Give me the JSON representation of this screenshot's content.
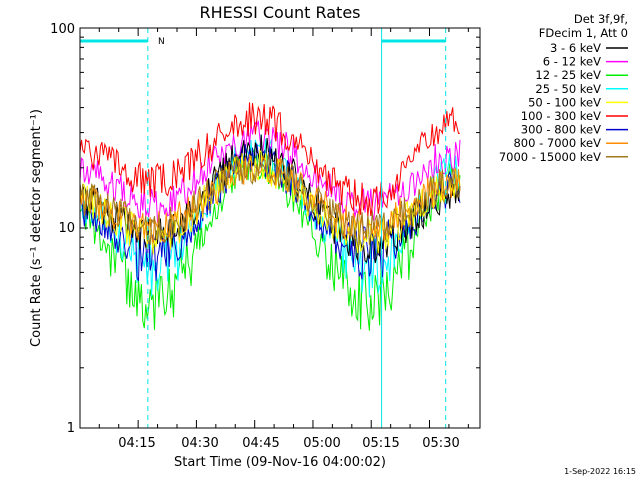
{
  "chart_data": {
    "type": "line",
    "title": "RHESSI Count Rates",
    "xlabel": "Start Time (09-Nov-16 04:00:02)",
    "ylabel": "Count Rate (s⁻¹ detector segment⁻¹)",
    "yscale": "log",
    "ylim": [
      1,
      100
    ],
    "xlim": [
      "04:00:02",
      "05:43:00"
    ],
    "x_tick_labels": [
      "04:15",
      "04:30",
      "04:45",
      "05:00",
      "05:15",
      "05:30"
    ],
    "y_tick_labels": [
      "1",
      "10",
      "100"
    ],
    "legend_header": [
      "Det 3f,9f,",
      "FDecim 1, Att 0"
    ],
    "legend_position": "right",
    "timestamp": "1-Sep-2022 16:15",
    "annotation": {
      "text": "N",
      "color": "#00e6e6"
    },
    "night_intervals": [
      {
        "start": "04:00:02",
        "end": "04:17:30"
      },
      {
        "start": "05:17:40",
        "end": "05:34:10"
      }
    ],
    "series": [
      {
        "name": "3 - 6 keV",
        "color": "#000000",
        "shape": [
          [
            0,
            14
          ],
          [
            0.18,
            9
          ],
          [
            0.44,
            24
          ],
          [
            0.72,
            8
          ],
          [
            0.95,
            15
          ]
        ]
      },
      {
        "name": "6 - 12 keV",
        "color": "#ff00ff",
        "shape": [
          [
            0,
            19
          ],
          [
            0.18,
            13
          ],
          [
            0.44,
            28
          ],
          [
            0.72,
            13
          ],
          [
            0.95,
            24
          ]
        ]
      },
      {
        "name": "12 - 25 keV",
        "color": "#00ee00",
        "shape": [
          [
            0,
            11
          ],
          [
            0.18,
            4.3
          ],
          [
            0.44,
            21
          ],
          [
            0.72,
            4.3
          ],
          [
            0.95,
            18
          ]
        ]
      },
      {
        "name": "25 - 50 keV",
        "color": "#00ffff",
        "shape": [
          [
            0,
            13
          ],
          [
            0.18,
            6.3
          ],
          [
            0.44,
            24
          ],
          [
            0.72,
            6.3
          ],
          [
            0.95,
            20
          ]
        ]
      },
      {
        "name": "50 - 100 keV",
        "color": "#ffff00",
        "shape": [
          [
            0,
            14
          ],
          [
            0.18,
            9
          ],
          [
            0.44,
            20
          ],
          [
            0.72,
            9
          ],
          [
            0.95,
            17
          ]
        ]
      },
      {
        "name": "100 - 300 keV",
        "color": "#ff0000",
        "shape": [
          [
            0,
            24
          ],
          [
            0.18,
            17
          ],
          [
            0.44,
            35
          ],
          [
            0.72,
            14
          ],
          [
            0.95,
            35
          ]
        ]
      },
      {
        "name": "300 - 800 keV",
        "color": "#0000cc",
        "shape": [
          [
            0,
            12
          ],
          [
            0.18,
            7.2
          ],
          [
            0.44,
            22
          ],
          [
            0.72,
            7.2
          ],
          [
            0.95,
            16
          ]
        ]
      },
      {
        "name": "800 - 7000 keV",
        "color": "#ff8c00",
        "shape": [
          [
            0,
            14
          ],
          [
            0.18,
            10
          ],
          [
            0.44,
            20
          ],
          [
            0.72,
            10
          ],
          [
            0.95,
            17
          ]
        ]
      },
      {
        "name": "7000 - 15000 keV",
        "color": "#a0781e",
        "shape": [
          [
            0,
            14
          ],
          [
            0.18,
            10
          ],
          [
            0.44,
            20
          ],
          [
            0.72,
            10
          ],
          [
            0.95,
            17
          ]
        ]
      }
    ]
  }
}
